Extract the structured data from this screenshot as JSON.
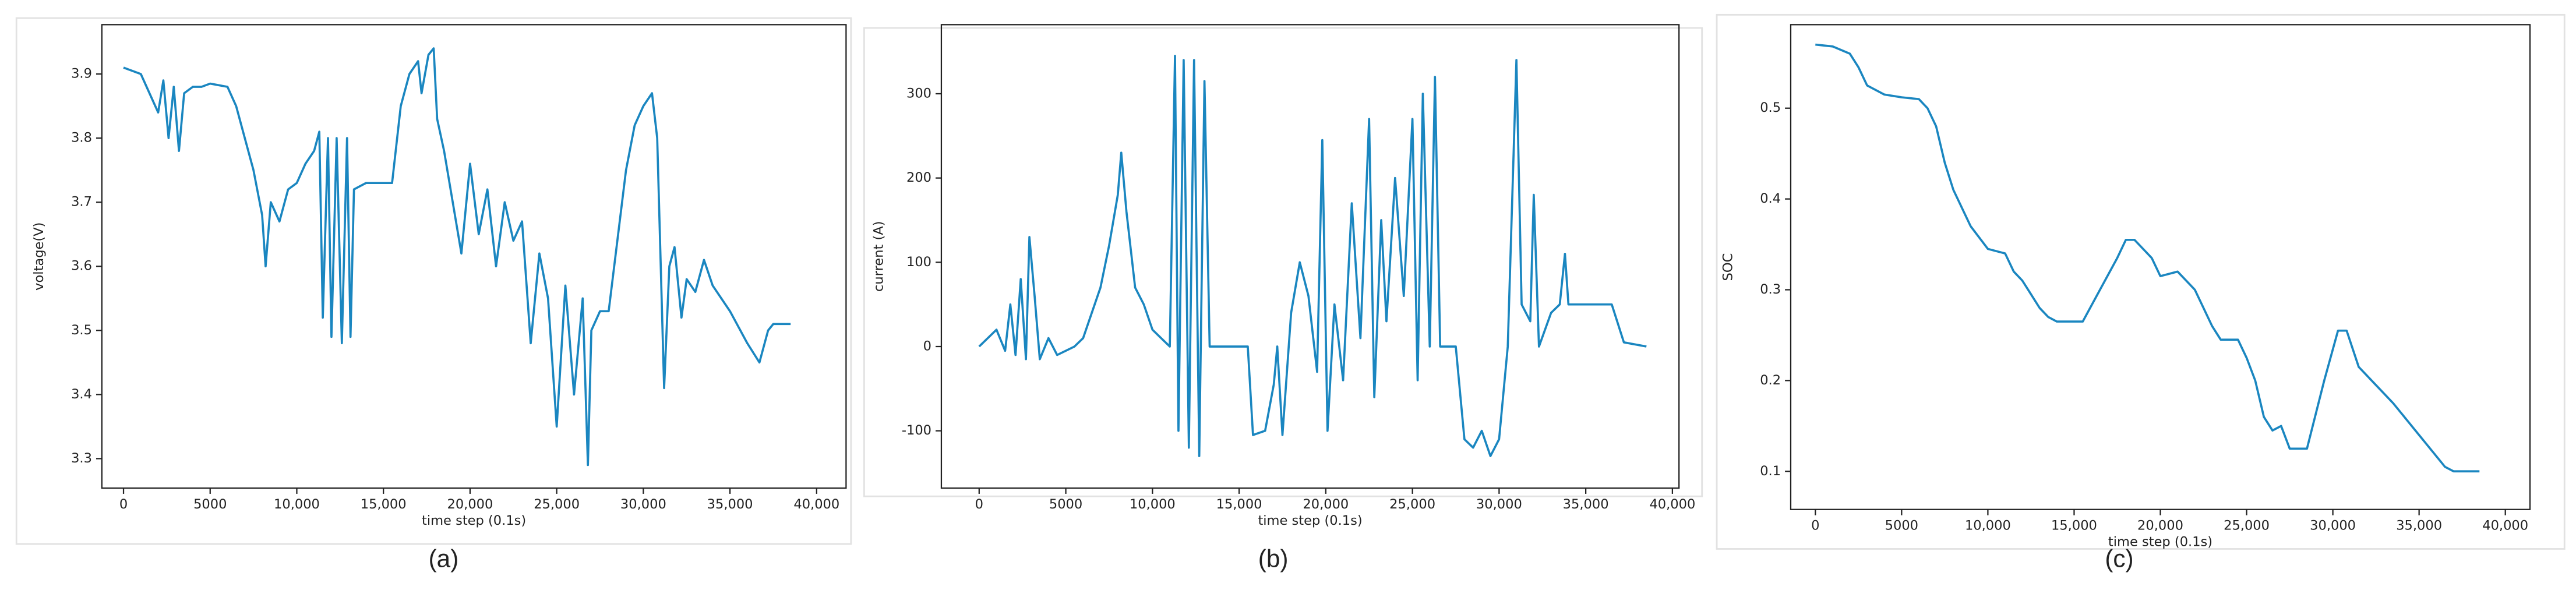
{
  "chart_data": [
    {
      "type": "line",
      "caption": "(a)",
      "xlabel": "time step (0.1s)",
      "ylabel": "voltage(V)",
      "color": "#1a86c0",
      "x": [
        0,
        1000,
        1500,
        2000,
        2300,
        2600,
        2900,
        3200,
        3500,
        4000,
        4500,
        5000,
        6000,
        6500,
        7000,
        7500,
        8000,
        8200,
        8500,
        9000,
        9500,
        10000,
        10500,
        11000,
        11300,
        11500,
        11800,
        12000,
        12300,
        12600,
        12900,
        13100,
        13300,
        14000,
        15500,
        16000,
        16500,
        17000,
        17200,
        17600,
        17900,
        18100,
        18500,
        19000,
        19500,
        20000,
        20500,
        21000,
        21500,
        22000,
        22500,
        23000,
        23500,
        24000,
        24500,
        25000,
        25500,
        26000,
        26500,
        26800,
        27000,
        27500,
        28000,
        29000,
        29500,
        30000,
        30500,
        30800,
        31200,
        31500,
        31800,
        32200,
        32500,
        33000,
        33500,
        34000,
        35000,
        36000,
        36700,
        37200,
        37500,
        38500
      ],
      "values": [
        3.91,
        3.9,
        3.87,
        3.84,
        3.89,
        3.8,
        3.88,
        3.78,
        3.87,
        3.88,
        3.88,
        3.885,
        3.88,
        3.85,
        3.8,
        3.75,
        3.68,
        3.6,
        3.7,
        3.67,
        3.72,
        3.73,
        3.76,
        3.78,
        3.81,
        3.52,
        3.8,
        3.49,
        3.8,
        3.48,
        3.8,
        3.49,
        3.72,
        3.73,
        3.73,
        3.85,
        3.9,
        3.92,
        3.87,
        3.93,
        3.94,
        3.83,
        3.78,
        3.7,
        3.62,
        3.76,
        3.65,
        3.72,
        3.6,
        3.7,
        3.64,
        3.67,
        3.48,
        3.62,
        3.55,
        3.35,
        3.57,
        3.4,
        3.55,
        3.29,
        3.5,
        3.53,
        3.53,
        3.75,
        3.82,
        3.85,
        3.87,
        3.8,
        3.41,
        3.6,
        3.63,
        3.52,
        3.58,
        3.56,
        3.61,
        3.57,
        3.53,
        3.48,
        3.45,
        3.5,
        3.51,
        3.51
      ],
      "xlim": [
        -1250,
        41700
      ],
      "ylim": [
        3.254,
        3.977
      ],
      "xticks": [
        0,
        5000,
        {
          "value": 10000,
          "label": "10,000"
        },
        {
          "value": 15000,
          "label": "15,000"
        },
        {
          "value": 20000,
          "label": "20,000"
        },
        {
          "value": 25000,
          "label": "25,000"
        },
        {
          "value": 30000,
          "label": "30,000"
        },
        {
          "value": 35000,
          "label": "35,000"
        },
        {
          "value": 40000,
          "label": "40,000"
        }
      ],
      "yticks": [
        3.3,
        3.4,
        3.5,
        3.6,
        3.7,
        3.8,
        3.9
      ]
    },
    {
      "type": "line",
      "caption": "(b)",
      "xlabel": "time step (0.1s)",
      "ylabel": "current (A)",
      "color": "#1a86c0",
      "x": [
        0,
        1000,
        1500,
        1800,
        2100,
        2400,
        2700,
        2900,
        3200,
        3500,
        4000,
        4500,
        5000,
        5500,
        6000,
        6500,
        7000,
        7500,
        8000,
        8200,
        8500,
        9000,
        9500,
        10000,
        10500,
        11000,
        11300,
        11500,
        11800,
        12100,
        12400,
        12700,
        13000,
        13300,
        15000,
        15500,
        15800,
        16500,
        17000,
        17200,
        17500,
        18000,
        18500,
        19000,
        19500,
        19800,
        20100,
        20500,
        21000,
        21500,
        22000,
        22500,
        22800,
        23200,
        23500,
        24000,
        24500,
        25000,
        25300,
        25600,
        26000,
        26300,
        26600,
        27500,
        28000,
        28500,
        29000,
        29500,
        30000,
        30500,
        31000,
        31300,
        31800,
        32000,
        32300,
        33000,
        33500,
        33800,
        34000,
        36500,
        37200,
        38500
      ],
      "values": [
        0,
        20,
        -5,
        50,
        -10,
        80,
        -15,
        130,
        60,
        -15,
        10,
        -10,
        -5,
        0,
        10,
        40,
        70,
        120,
        180,
        230,
        160,
        70,
        50,
        20,
        10,
        0,
        345,
        -100,
        340,
        -120,
        340,
        -130,
        315,
        0,
        0,
        0,
        -105,
        -100,
        -45,
        0,
        -105,
        40,
        100,
        60,
        -30,
        245,
        -100,
        50,
        -40,
        170,
        10,
        270,
        -60,
        150,
        30,
        200,
        60,
        270,
        -40,
        300,
        0,
        320,
        0,
        0,
        -110,
        -120,
        -100,
        -130,
        -110,
        0,
        340,
        50,
        30,
        180,
        0,
        40,
        50,
        110,
        50,
        50,
        5,
        0
      ],
      "xlim": [
        -2180,
        40380
      ],
      "ylim": [
        -168,
        382
      ],
      "xticks": [
        0,
        5000,
        {
          "value": 10000,
          "label": "10,000"
        },
        {
          "value": 15000,
          "label": "15,000"
        },
        {
          "value": 20000,
          "label": "20,000"
        },
        {
          "value": 25000,
          "label": "25,000"
        },
        {
          "value": 30000,
          "label": "30,000"
        },
        {
          "value": 35000,
          "label": "35,000"
        },
        {
          "value": 40000,
          "label": "40,000"
        }
      ],
      "yticks": [
        -100,
        0,
        100,
        200,
        300
      ]
    },
    {
      "type": "line",
      "caption": "(c)",
      "xlabel": "time step (0.1s)",
      "ylabel": "SOC",
      "color": "#1a86c0",
      "x": [
        0,
        1000,
        2000,
        2500,
        3000,
        4000,
        5000,
        6000,
        6500,
        7000,
        7500,
        8000,
        9000,
        10000,
        11000,
        11500,
        12000,
        12500,
        13000,
        13500,
        14000,
        15500,
        16500,
        17500,
        18000,
        18500,
        19000,
        19500,
        20000,
        21000,
        22000,
        23000,
        23500,
        24500,
        25000,
        25500,
        26000,
        26500,
        27000,
        27500,
        28500,
        29500,
        30300,
        30800,
        31500,
        32500,
        33500,
        35000,
        36500,
        37000,
        38500
      ],
      "values": [
        0.57,
        0.568,
        0.56,
        0.545,
        0.525,
        0.515,
        0.512,
        0.51,
        0.5,
        0.48,
        0.44,
        0.41,
        0.37,
        0.345,
        0.34,
        0.32,
        0.31,
        0.295,
        0.28,
        0.27,
        0.265,
        0.265,
        0.3,
        0.335,
        0.355,
        0.355,
        0.345,
        0.335,
        0.315,
        0.32,
        0.3,
        0.26,
        0.245,
        0.245,
        0.225,
        0.2,
        0.16,
        0.145,
        0.15,
        0.125,
        0.125,
        0.2,
        0.255,
        0.255,
        0.215,
        0.195,
        0.175,
        0.14,
        0.105,
        0.1,
        0.1
      ],
      "xlim": [
        -1430,
        41430
      ],
      "ylim": [
        0.058,
        0.592
      ],
      "xticks": [
        0,
        5000,
        {
          "value": 10000,
          "label": "10,000"
        },
        {
          "value": 15000,
          "label": "15,000"
        },
        {
          "value": 20000,
          "label": "20,000"
        },
        {
          "value": 25000,
          "label": "25,000"
        },
        {
          "value": 30000,
          "label": "30,000"
        },
        {
          "value": 35000,
          "label": "35,000"
        },
        {
          "value": 40000,
          "label": "40,000"
        }
      ],
      "yticks": [
        0.1,
        0.2,
        0.3,
        0.4,
        0.5
      ]
    }
  ]
}
